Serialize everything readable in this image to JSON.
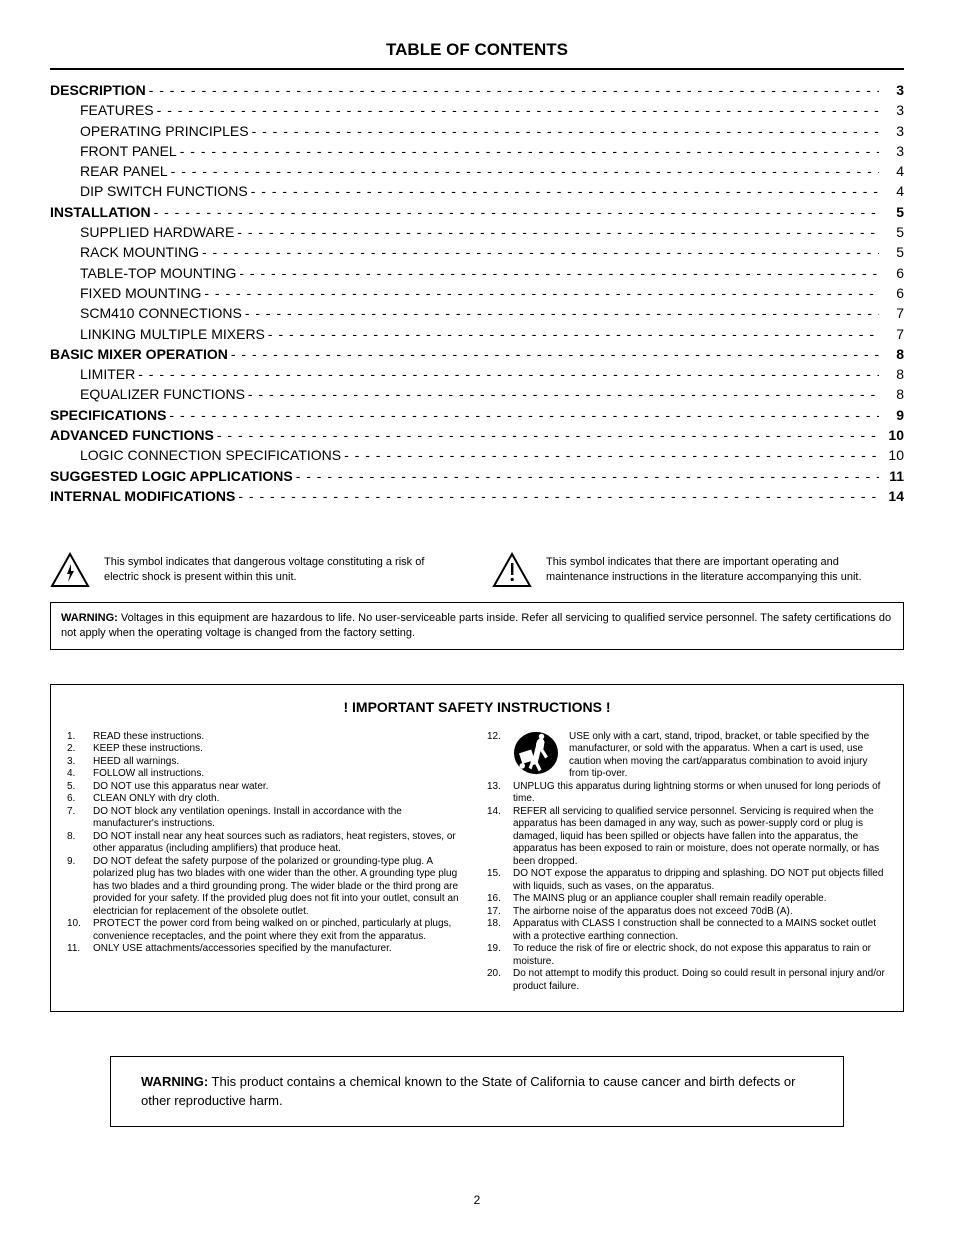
{
  "title": "TABLE OF CONTENTS",
  "page_number": "2",
  "colors": {
    "text": "#000000",
    "bg": "#ffffff",
    "rule": "#000000",
    "border": "#000000"
  },
  "toc_fontsize": 14,
  "toc_line_height": 1.45,
  "toc": [
    {
      "label": "DESCRIPTION",
      "page": "3",
      "bold": true,
      "indent": false
    },
    {
      "label": "FEATURES",
      "page": "3",
      "bold": false,
      "indent": true
    },
    {
      "label": "OPERATING PRINCIPLES",
      "page": "3",
      "bold": false,
      "indent": true
    },
    {
      "label": "FRONT PANEL",
      "page": "3",
      "bold": false,
      "indent": true
    },
    {
      "label": "REAR PANEL",
      "page": "4",
      "bold": false,
      "indent": true
    },
    {
      "label": "DIP SWITCH FUNCTIONS",
      "page": "4",
      "bold": false,
      "indent": true
    },
    {
      "label": "INSTALLATION",
      "page": "5",
      "bold": true,
      "indent": false
    },
    {
      "label": "SUPPLIED HARDWARE",
      "page": "5",
      "bold": false,
      "indent": true
    },
    {
      "label": "RACK MOUNTING",
      "page": "5",
      "bold": false,
      "indent": true
    },
    {
      "label": "TABLE-TOP MOUNTING",
      "page": "6",
      "bold": false,
      "indent": true
    },
    {
      "label": "FIXED MOUNTING",
      "page": "6",
      "bold": false,
      "indent": true
    },
    {
      "label": "SCM410 CONNECTIONS",
      "page": "7",
      "bold": false,
      "indent": true
    },
    {
      "label": "LINKING MULTIPLE MIXERS",
      "page": "7",
      "bold": false,
      "indent": true
    },
    {
      "label": "BASIC MIXER OPERATION",
      "page": "8",
      "bold": true,
      "indent": false
    },
    {
      "label": "LIMITER",
      "page": "8",
      "bold": false,
      "indent": true
    },
    {
      "label": "EQUALIZER FUNCTIONS",
      "page": "8",
      "bold": false,
      "indent": true
    },
    {
      "label": "SPECIFICATIONS",
      "page": "9",
      "bold": true,
      "indent": false
    },
    {
      "label": "ADVANCED FUNCTIONS",
      "page": "10",
      "bold": true,
      "indent": false
    },
    {
      "label": "LOGIC CONNECTION SPECIFICATIONS",
      "page": "10",
      "bold": false,
      "indent": true
    },
    {
      "label": "SUGGESTED LOGIC APPLICATIONS",
      "page": "11",
      "bold": true,
      "indent": false
    },
    {
      "label": "INTERNAL MODIFICATIONS",
      "page": "14",
      "bold": true,
      "indent": false
    }
  ],
  "symbols": {
    "voltage": "This symbol indicates that dangerous voltage constituting a risk of electric shock is present within this unit.",
    "maintenance": "This symbol indicates that there are important operating and maintenance instructions in the literature accompanying this unit."
  },
  "warning_box": {
    "lead": "WARNING:",
    "text": " Voltages in this equipment are hazardous to life. No user-serviceable parts inside. Refer all servicing to qualified service personnel. The safety certifications do not apply when the operating voltage is changed from the factory setting."
  },
  "safety": {
    "title": "! IMPORTANT SAFETY INSTRUCTIONS !",
    "left": [
      {
        "n": "1.",
        "t": "READ these instructions."
      },
      {
        "n": "2.",
        "t": "KEEP these instructions."
      },
      {
        "n": "3.",
        "t": "HEED all warnings."
      },
      {
        "n": "4.",
        "t": "FOLLOW all instructions."
      },
      {
        "n": "5.",
        "t": "DO NOT use this apparatus near water."
      },
      {
        "n": "6.",
        "t": "CLEAN ONLY with dry cloth."
      },
      {
        "n": "7.",
        "t": "DO NOT block any ventilation openings. Install in accordance with the manufacturer's instructions."
      },
      {
        "n": "8.",
        "t": "DO NOT install near any heat sources such as radiators, heat registers, stoves, or other apparatus (including amplifiers) that produce heat."
      },
      {
        "n": "9.",
        "t": "DO NOT defeat the safety purpose of the polarized or grounding-type plug. A polarized plug has two blades with one wider than the other. A grounding type plug has two blades and a third grounding prong. The wider blade or the third prong are provided for your safety. If the provided plug does not fit into your outlet, consult an electrician for replacement of the obsolete outlet."
      },
      {
        "n": "10.",
        "t": "PROTECT the power cord from being walked on or pinched, particularly at plugs, convenience receptacles, and the point where they exit from the apparatus."
      },
      {
        "n": "11.",
        "t": "ONLY USE attachments/accessories specified by the manufacturer."
      }
    ],
    "cart": {
      "n": "12.",
      "t": "USE only with a cart, stand, tripod, bracket, or table specified by the manufacturer, or sold with the apparatus. When a cart is used, use caution when moving the cart/apparatus combination to avoid injury from tip-over."
    },
    "right": [
      {
        "n": "13.",
        "t": "UNPLUG this apparatus during lightning storms or when unused for long periods of time."
      },
      {
        "n": "14.",
        "t": "REFER all servicing to qualified service personnel. Servicing is required when the apparatus has been damaged in any way, such as power-supply cord or plug is damaged, liquid has been spilled or objects have fallen into the apparatus, the apparatus has been exposed to rain or moisture, does not operate normally, or has been dropped."
      },
      {
        "n": "15.",
        "t": "DO NOT expose the apparatus to dripping and splashing. DO NOT put objects filled with liquids, such as vases, on the apparatus."
      },
      {
        "n": "16.",
        "t": "The MAINS plug or an appliance coupler shall remain readily operable."
      },
      {
        "n": "17.",
        "t": "The airborne noise of the apparatus does not exceed 70dB (A)."
      },
      {
        "n": "18.",
        "t": "Apparatus with CLASS I construction shall be connected to a MAINS socket outlet with a protective earthing connection."
      },
      {
        "n": "19.",
        "t": "To reduce the risk of fire or electric shock, do not expose this apparatus to rain or moisture."
      },
      {
        "n": "20.",
        "t": "Do not attempt to modify this product. Doing so could result in personal injury and/or product failure."
      }
    ]
  },
  "california": {
    "lead": "WARNING:",
    "text": " This product contains a chemical known to the State of California to cause cancer and birth defects or other reproductive harm."
  }
}
